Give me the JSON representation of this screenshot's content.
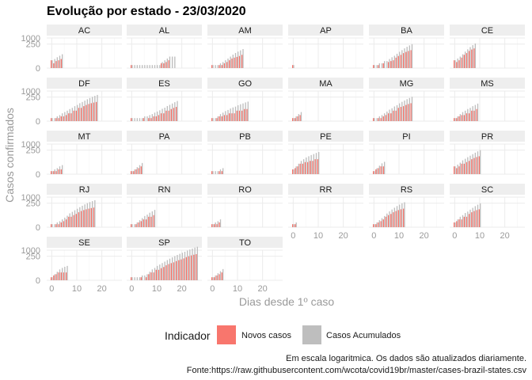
{
  "chart_data": {
    "type": "bar",
    "title": "Evolução por estado -  23/03/2020",
    "xlabel": "Dias desde 1º caso",
    "ylabel": "Casos confirmados",
    "x_ticks": [
      0,
      10,
      20
    ],
    "xlim": [
      -2,
      28
    ],
    "y_ticks": [
      0,
      250,
      1000
    ],
    "y_tick_labels": [
      "0",
      "250",
      "1000"
    ],
    "y_scale": "log1p",
    "ylim": [
      0,
      1000
    ],
    "grid": true,
    "legend_placement": "bottom",
    "legend": {
      "title": "Indicador",
      "items": [
        {
          "label": "Novos casos",
          "color": "#F8766D"
        },
        {
          "label": "Casos Acumulados",
          "color": "#BEBEBE"
        }
      ]
    },
    "caption_lines": [
      "Em escala logaritmica. Os dados são atualizados diariamente.",
      "Fonte:https://raw.githubusercontent.com/wcota/covid19br/master/cases-brazil-states.csv"
    ],
    "panels": [
      {
        "name": "AC",
        "new": [
          5,
          2,
          4,
          5,
          7
        ],
        "cum": [
          5,
          7,
          11,
          16,
          23
        ]
      },
      {
        "name": "AL",
        "new": [
          1,
          0,
          0,
          0,
          0,
          0,
          0,
          0,
          0,
          0,
          0,
          0,
          2,
          2,
          3,
          5,
          0,
          0
        ],
        "cum": [
          1,
          1,
          1,
          1,
          1,
          1,
          1,
          1,
          1,
          1,
          1,
          1,
          3,
          5,
          8,
          13,
          13,
          13
        ]
      },
      {
        "name": "AM",
        "new": [
          1,
          0,
          0,
          1,
          1,
          2,
          3,
          5,
          8,
          10,
          12,
          15,
          20
        ],
        "cum": [
          1,
          1,
          1,
          2,
          3,
          5,
          8,
          13,
          21,
          31,
          43,
          58,
          78
        ]
      },
      {
        "name": "AP",
        "new": [
          1
        ],
        "cum": [
          1
        ]
      },
      {
        "name": "BA",
        "new": [
          1,
          0,
          1,
          0,
          2,
          0,
          3,
          4,
          5,
          10,
          15,
          20,
          30,
          40,
          50,
          60
        ],
        "cum": [
          1,
          1,
          2,
          2,
          4,
          4,
          7,
          11,
          16,
          26,
          41,
          61,
          91,
          131,
          181,
          241
        ]
      },
      {
        "name": "CE",
        "new": [
          5,
          3,
          5,
          10,
          20,
          30,
          50,
          70,
          90
        ],
        "cum": [
          5,
          8,
          13,
          23,
          43,
          73,
          123,
          193,
          283
        ]
      },
      {
        "name": "DF",
        "new": [
          1,
          0,
          1,
          1,
          2,
          2,
          3,
          5,
          5,
          10,
          10,
          20,
          20,
          30,
          40,
          50,
          60,
          70,
          80
        ],
        "cum": [
          1,
          1,
          2,
          3,
          5,
          7,
          10,
          15,
          20,
          30,
          40,
          60,
          80,
          110,
          150,
          200,
          260,
          330,
          410
        ]
      },
      {
        "name": "ES",
        "new": [
          1,
          0,
          0,
          0,
          0,
          1,
          0,
          1,
          1,
          2,
          2,
          3,
          5,
          5,
          10,
          10,
          15,
          20,
          25
        ],
        "cum": [
          1,
          1,
          1,
          1,
          1,
          2,
          2,
          3,
          4,
          6,
          8,
          11,
          16,
          21,
          31,
          41,
          56,
          76,
          101
        ]
      },
      {
        "name": "GO",
        "new": [
          1,
          0,
          1,
          2,
          2,
          3,
          3,
          5,
          5,
          5,
          10,
          10,
          10,
          15,
          15
        ],
        "cum": [
          1,
          1,
          2,
          4,
          6,
          9,
          12,
          17,
          22,
          27,
          37,
          47,
          57,
          72,
          87
        ]
      },
      {
        "name": "MA",
        "new": [
          1,
          1,
          2,
          3
        ],
        "cum": [
          1,
          2,
          4,
          7
        ]
      },
      {
        "name": "MG",
        "new": [
          1,
          0,
          1,
          1,
          2,
          3,
          5,
          5,
          10,
          10,
          20,
          25,
          30,
          40,
          50,
          60
        ],
        "cum": [
          1,
          1,
          2,
          3,
          5,
          8,
          13,
          18,
          28,
          38,
          58,
          83,
          113,
          153,
          203,
          263
        ]
      },
      {
        "name": "MS",
        "new": [
          1,
          1,
          2,
          3,
          3,
          5,
          5,
          10,
          10,
          15
        ],
        "cum": [
          1,
          2,
          4,
          7,
          10,
          15,
          20,
          30,
          40,
          55
        ]
      },
      {
        "name": "MT",
        "new": [
          1,
          1,
          1,
          2,
          2
        ],
        "cum": [
          1,
          2,
          3,
          5,
          7
        ]
      },
      {
        "name": "PA",
        "new": [
          1,
          1,
          2,
          3,
          5
        ],
        "cum": [
          1,
          2,
          4,
          7,
          12
        ]
      },
      {
        "name": "PB",
        "new": [
          1,
          0,
          0,
          1,
          1
        ],
        "cum": [
          1,
          1,
          1,
          2,
          3
        ]
      },
      {
        "name": "PE",
        "new": [
          2,
          3,
          5,
          10,
          10,
          15,
          15,
          20,
          20,
          30,
          30
        ],
        "cum": [
          2,
          5,
          10,
          20,
          30,
          45,
          60,
          80,
          100,
          130,
          160
        ]
      },
      {
        "name": "PI",
        "new": [
          1,
          2,
          3,
          5,
          5
        ],
        "cum": [
          1,
          3,
          6,
          11,
          16
        ]
      },
      {
        "name": "PR",
        "new": [
          5,
          3,
          5,
          10,
          10,
          15,
          20,
          30,
          40,
          50,
          60
        ],
        "cum": [
          5,
          8,
          13,
          23,
          33,
          48,
          68,
          98,
          138,
          188,
          248
        ]
      },
      {
        "name": "RJ",
        "new": [
          1,
          0,
          1,
          1,
          2,
          3,
          5,
          10,
          10,
          15,
          20,
          30,
          40,
          50,
          60,
          70,
          80,
          90
        ],
        "cum": [
          1,
          1,
          2,
          3,
          5,
          8,
          13,
          23,
          33,
          48,
          68,
          98,
          138,
          188,
          248,
          318,
          398,
          488
        ]
      },
      {
        "name": "RN",
        "new": [
          1,
          0,
          1,
          2,
          3,
          5,
          5,
          10,
          10,
          15
        ],
        "cum": [
          1,
          1,
          2,
          4,
          7,
          12,
          17,
          27,
          37,
          52
        ]
      },
      {
        "name": "RO",
        "new": [
          1,
          1,
          1,
          2
        ],
        "cum": [
          1,
          2,
          3,
          5
        ]
      },
      {
        "name": "RR",
        "new": [
          1,
          1
        ],
        "cum": [
          1,
          2
        ]
      },
      {
        "name": "RS",
        "new": [
          1,
          1,
          2,
          3,
          5,
          10,
          15,
          20,
          30,
          40,
          50,
          60,
          70
        ],
        "cum": [
          1,
          2,
          4,
          7,
          12,
          22,
          37,
          57,
          87,
          127,
          177,
          237,
          307
        ]
      },
      {
        "name": "SC",
        "new": [
          2,
          3,
          5,
          5,
          10,
          10,
          20,
          30,
          40,
          50,
          60
        ],
        "cum": [
          2,
          5,
          10,
          15,
          25,
          35,
          55,
          85,
          125,
          175,
          235
        ]
      },
      {
        "name": "SE",
        "new": [
          1,
          2,
          3,
          5,
          5,
          5,
          5
        ],
        "cum": [
          1,
          3,
          6,
          11,
          16,
          21,
          26
        ]
      },
      {
        "name": "SP",
        "new": [
          1,
          0,
          0,
          0,
          1,
          0,
          1,
          3,
          5,
          5,
          10,
          10,
          15,
          20,
          30,
          40,
          50,
          60,
          80,
          100,
          120,
          150,
          200,
          250,
          300,
          350,
          400
        ],
        "cum": [
          1,
          1,
          1,
          1,
          2,
          2,
          3,
          6,
          11,
          16,
          26,
          36,
          51,
          71,
          101,
          141,
          191,
          251,
          331,
          431,
          551,
          701,
          901,
          1151,
          1451,
          1801,
          2201
        ]
      },
      {
        "name": "TO",
        "new": [
          1,
          1,
          2,
          3,
          5
        ],
        "cum": [
          1,
          2,
          4,
          7,
          12
        ]
      }
    ]
  }
}
